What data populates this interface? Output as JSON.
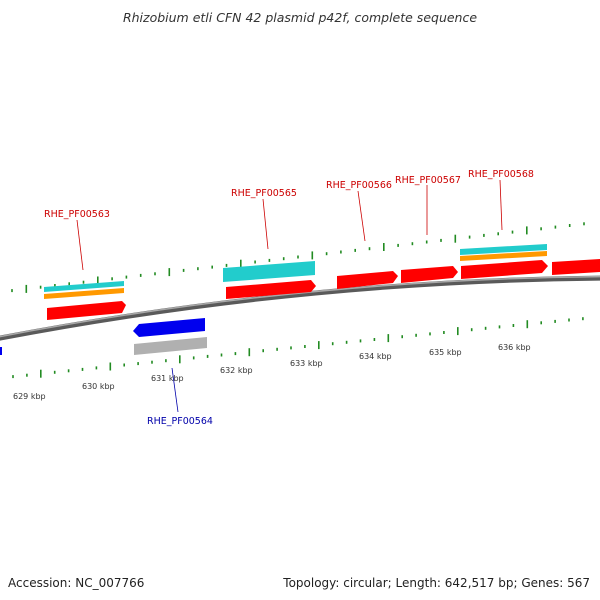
{
  "title": "Rhizobium etli CFN 42 plasmid p42f, complete sequence",
  "footer": {
    "accession": "Accession: NC_007766",
    "summary": "Topology: circular; Length: 642,517 bp; Genes: 567"
  },
  "colors": {
    "backbone": "#808080",
    "tick": "#228b22",
    "forward_gene": "#ff0000",
    "reverse_gene": "#0000ee",
    "cyan_feature": "#22cccc",
    "orange_feature": "#ff9900",
    "gray_feature": "#b0b0b0",
    "forward_label": "#cc0000",
    "reverse_label": "#0000aa"
  },
  "tick_labels": [
    "629 kbp",
    "630 kbp",
    "631 kbp",
    "632 kbp",
    "633 kbp",
    "634 kbp",
    "635 kbp",
    "636 kbp"
  ],
  "gene_labels": [
    {
      "text": "RHE_PF00563",
      "strand": "forward"
    },
    {
      "text": "RHE_PF00564",
      "strand": "reverse"
    },
    {
      "text": "RHE_PF00565",
      "strand": "forward"
    },
    {
      "text": "RHE_PF00566",
      "strand": "forward"
    },
    {
      "text": "RHE_PF00567",
      "strand": "forward"
    },
    {
      "text": "RHE_PF00568",
      "strand": "forward"
    }
  ]
}
